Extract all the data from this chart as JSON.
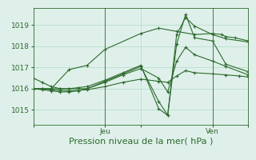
{
  "bg_color": "#dff0ea",
  "line_color": "#2d6a2d",
  "grid_color": "#b0d8c8",
  "xlabel": "Pression niveau de la mer( hPa )",
  "xlabel_fontsize": 8,
  "tick_label_fontsize": 6.5,
  "ylim": [
    1014.3,
    1019.8
  ],
  "yticks": [
    1015,
    1016,
    1017,
    1018,
    1019
  ],
  "xlim": [
    0,
    48
  ],
  "xtick_positions": [
    0,
    16,
    24,
    40,
    48
  ],
  "xtick_labels": [
    "",
    "Jeu",
    "",
    "Ven",
    ""
  ],
  "series": [
    {
      "x": [
        0,
        4,
        8,
        12,
        16,
        24,
        28,
        32,
        36,
        40,
        42,
        43,
        45,
        48
      ],
      "y": [
        1016.0,
        1016.0,
        1016.9,
        1017.1,
        1017.85,
        1018.6,
        1018.85,
        1018.7,
        1018.55,
        1018.6,
        1018.55,
        1018.45,
        1018.4,
        1018.25
      ]
    },
    {
      "x": [
        0,
        2,
        4,
        6,
        8,
        10,
        12,
        16,
        20,
        24,
        28,
        30,
        32,
        34,
        36,
        40,
        43,
        48
      ],
      "y": [
        1016.0,
        1015.95,
        1015.9,
        1015.85,
        1015.85,
        1015.9,
        1016.0,
        1016.35,
        1016.7,
        1017.05,
        1015.4,
        1014.75,
        1018.55,
        1019.35,
        1018.95,
        1018.55,
        1018.35,
        1018.2
      ]
    },
    {
      "x": [
        0,
        2,
        4,
        6,
        8,
        10,
        12,
        16,
        20,
        24,
        28,
        30,
        32,
        34,
        36,
        40,
        43,
        48
      ],
      "y": [
        1016.5,
        1016.3,
        1016.1,
        1016.0,
        1016.0,
        1016.05,
        1016.1,
        1016.4,
        1016.75,
        1017.1,
        1015.05,
        1014.75,
        1018.1,
        1019.5,
        1018.4,
        1018.25,
        1017.15,
        1016.8
      ]
    },
    {
      "x": [
        0,
        2,
        4,
        6,
        8,
        12,
        16,
        20,
        24,
        28,
        30,
        32,
        34,
        36,
        40,
        43,
        48
      ],
      "y": [
        1016.0,
        1016.0,
        1016.0,
        1016.0,
        1016.0,
        1016.0,
        1016.3,
        1016.65,
        1016.95,
        1016.5,
        1015.85,
        1017.3,
        1017.95,
        1017.6,
        1017.3,
        1017.05,
        1016.65
      ]
    },
    {
      "x": [
        0,
        2,
        4,
        6,
        8,
        12,
        16,
        20,
        24,
        28,
        30,
        32,
        34,
        36,
        40,
        43,
        46,
        48
      ],
      "y": [
        1016.0,
        1015.98,
        1015.95,
        1015.92,
        1015.9,
        1015.95,
        1016.1,
        1016.3,
        1016.45,
        1016.35,
        1016.3,
        1016.6,
        1016.85,
        1016.75,
        1016.7,
        1016.65,
        1016.6,
        1016.55
      ]
    }
  ]
}
